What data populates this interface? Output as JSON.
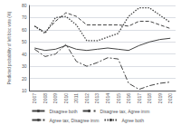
{
  "chart_data": {
    "type": "line",
    "ylabel": "Predicted probability of left bloc vote (%)",
    "categories": [
      "2007",
      "2008",
      "2009",
      "2010",
      "2011",
      "2012",
      "2013",
      "2014",
      "2015",
      "2016",
      "2017",
      "2018",
      "2019",
      "2020"
    ],
    "ylim": [
      10,
      80
    ],
    "yticks": [
      10,
      20,
      30,
      40,
      50,
      60,
      70,
      80
    ],
    "grid": true,
    "legend": "bottom",
    "series": [
      {
        "name": "Disagree both",
        "color": "#444444",
        "line_style": "solid",
        "values": [
          45,
          43,
          44,
          47,
          44,
          43,
          44,
          45,
          44,
          43,
          47,
          50,
          52,
          53
        ]
      },
      {
        "name": "Disagree tax, Agree imm",
        "color": "#444444",
        "line_style": "dashed",
        "values": [
          63,
          58,
          67,
          74,
          71,
          64,
          64,
          64,
          64,
          63,
          67,
          67,
          64,
          61
        ]
      },
      {
        "name": "Agree tax, Disagree imm",
        "color": "#444444",
        "line_style": "dashdot",
        "values": [
          44,
          38,
          40,
          48,
          34,
          30,
          33,
          37,
          36,
          16,
          11,
          14,
          16,
          17
        ]
      },
      {
        "name": "Agree both",
        "color": "#444444",
        "line_style": "dotted",
        "values": [
          63,
          57,
          70,
          71,
          64,
          51,
          51,
          54,
          57,
          71,
          78,
          78,
          72,
          66
        ]
      }
    ]
  }
}
